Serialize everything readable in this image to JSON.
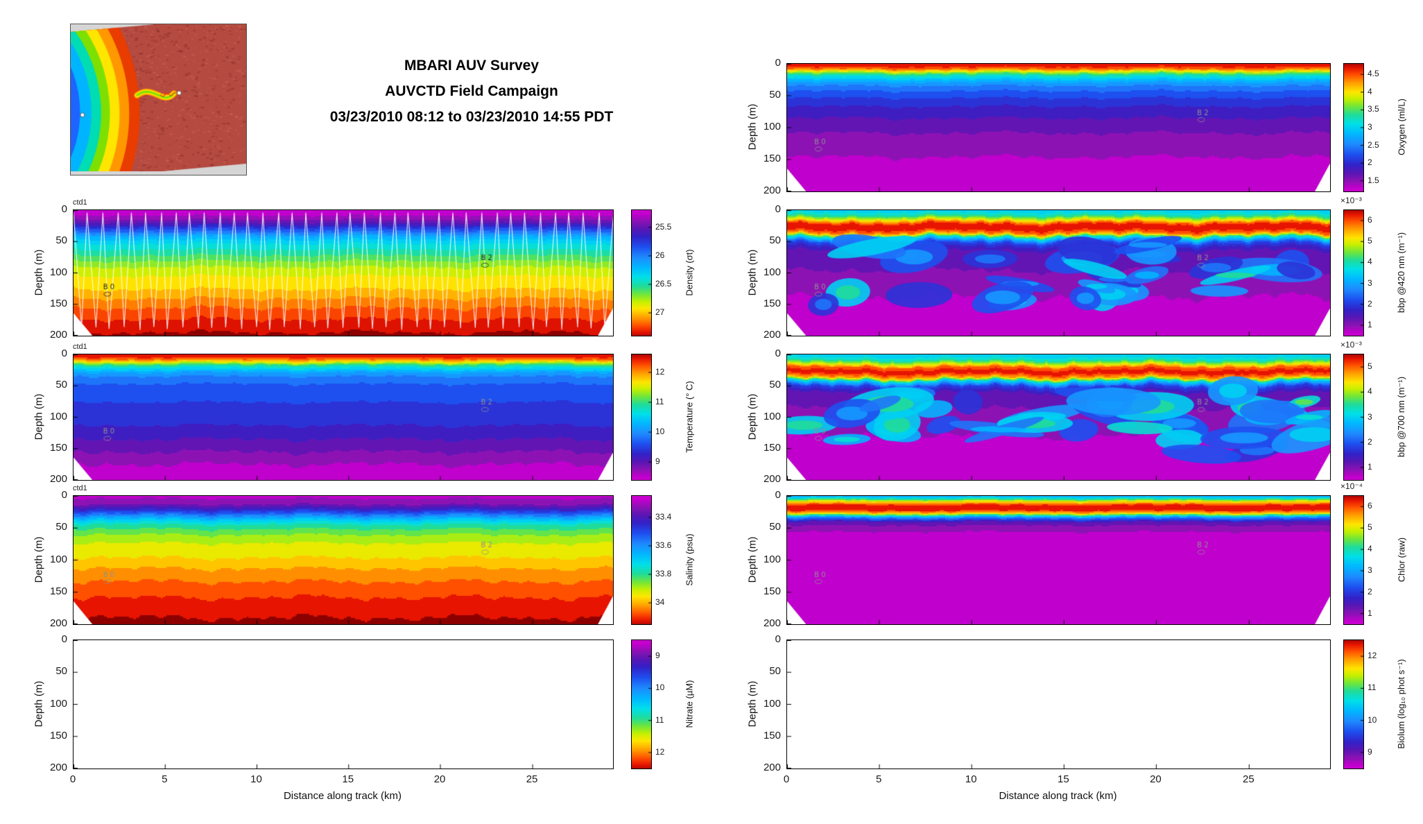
{
  "meta": {
    "title_line1": "MBARI AUV Survey",
    "title_line2": "AUVCTD Field Campaign",
    "title_line3": "03/23/2010 08:12 to 03/23/2010 14:55 PDT"
  },
  "axes": {
    "depth_label": "Depth (m)",
    "depth_ticks": [
      {
        "v": "0",
        "f": 0.0
      },
      {
        "v": "50",
        "f": 0.25
      },
      {
        "v": "100",
        "f": 0.5
      },
      {
        "v": "150",
        "f": 0.75
      },
      {
        "v": "200",
        "f": 1.0
      }
    ],
    "x_label": "Distance along track (km)",
    "x_ticks": [
      {
        "v": "0",
        "f": 0.0
      },
      {
        "v": "5",
        "f": 0.17
      },
      {
        "v": "10",
        "f": 0.34
      },
      {
        "v": "15",
        "f": 0.51
      },
      {
        "v": "20",
        "f": 0.68
      },
      {
        "v": "25",
        "f": 0.851
      }
    ],
    "x_range_km": [
      0,
      29.4
    ],
    "depth_range_m": [
      0,
      200
    ]
  },
  "colormap": [
    [
      0.0,
      "#d400d4"
    ],
    [
      0.05,
      "#c000cd"
    ],
    [
      0.1,
      "#8d12b4"
    ],
    [
      0.16,
      "#5a16b4"
    ],
    [
      0.22,
      "#3222c8"
    ],
    [
      0.3,
      "#1e50f0"
    ],
    [
      0.38,
      "#1e8cff"
    ],
    [
      0.46,
      "#00baff"
    ],
    [
      0.53,
      "#00e0e8"
    ],
    [
      0.6,
      "#20dc9a"
    ],
    [
      0.66,
      "#6ee63c"
    ],
    [
      0.72,
      "#c8f000"
    ],
    [
      0.77,
      "#ffe600"
    ],
    [
      0.84,
      "#ff9c00"
    ],
    [
      0.9,
      "#ff5000"
    ],
    [
      0.95,
      "#e61400"
    ],
    [
      1.0,
      "#8c0000"
    ]
  ],
  "chart_data": [
    {
      "id": "oxygen",
      "type": "heatmap",
      "parameter": "Oxygen",
      "units": "ml/L",
      "column": "right",
      "row": 0,
      "tag": "",
      "empty": false,
      "show_x_ticks": false,
      "colorbar": {
        "label": "Oxygen (ml/L)",
        "multiplier": "",
        "invert": true,
        "ticks": [
          {
            "v": "4.5",
            "f": 0.083
          },
          {
            "v": "4",
            "f": 0.222
          },
          {
            "v": "3.5",
            "f": 0.361
          },
          {
            "v": "3",
            "f": 0.5
          },
          {
            "v": "2.5",
            "f": 0.639
          },
          {
            "v": "2",
            "f": 0.778
          },
          {
            "v": "1.5",
            "f": 0.917
          }
        ]
      },
      "field": {
        "profile": [
          [
            0,
            0.97
          ],
          [
            0.03,
            0.9
          ],
          [
            0.05,
            0.78
          ],
          [
            0.07,
            0.64
          ],
          [
            0.1,
            0.52
          ],
          [
            0.13,
            0.44
          ],
          [
            0.17,
            0.37
          ],
          [
            0.22,
            0.31
          ],
          [
            0.28,
            0.26
          ],
          [
            0.35,
            0.21
          ],
          [
            0.45,
            0.16
          ],
          [
            0.55,
            0.12
          ],
          [
            0.7,
            0.08
          ],
          [
            0.85,
            0.05
          ],
          [
            1,
            0.03
          ]
        ],
        "wave_amp": 0.02,
        "quant": 20,
        "seed": 2,
        "track": false,
        "blobs": null
      },
      "annotations": [
        {
          "x": 0.755,
          "y": 0.4,
          "t": "B 2",
          "c": "#909090"
        },
        {
          "x": 0.05,
          "y": 0.63,
          "t": "B 0",
          "c": "#909090"
        }
      ]
    },
    {
      "id": "bbp420",
      "type": "heatmap",
      "parameter": "bbp @420 nm",
      "units": "m⁻¹",
      "column": "right",
      "row": 1,
      "tag": "",
      "empty": false,
      "show_x_ticks": false,
      "colorbar": {
        "label": "bbp @420 nm (m⁻¹)",
        "multiplier": "×10⁻³",
        "invert": true,
        "ticks": [
          {
            "v": "6",
            "f": 0.083
          },
          {
            "v": "5",
            "f": 0.25
          },
          {
            "v": "4",
            "f": 0.417
          },
          {
            "v": "3",
            "f": 0.583
          },
          {
            "v": "2",
            "f": 0.75
          },
          {
            "v": "1",
            "f": 0.917
          }
        ]
      },
      "field": {
        "profile": [
          [
            0,
            0.5
          ],
          [
            0.04,
            0.6
          ],
          [
            0.07,
            0.75
          ],
          [
            0.1,
            0.92
          ],
          [
            0.14,
            0.97
          ],
          [
            0.18,
            0.85
          ],
          [
            0.21,
            0.55
          ],
          [
            0.25,
            0.3
          ],
          [
            0.3,
            0.18
          ],
          [
            0.4,
            0.14
          ],
          [
            0.55,
            0.11
          ],
          [
            0.7,
            0.07
          ],
          [
            0.85,
            0.04
          ],
          [
            1,
            0.03
          ]
        ],
        "wave_amp": 0.035,
        "quant": 20,
        "seed": 11,
        "track": false,
        "blobs": {
          "count": 30,
          "dmin": 0.25,
          "dmax": 0.78,
          "vmin": 0.22,
          "vmax": 0.5,
          "seed": 17
        }
      },
      "annotations": [
        {
          "x": 0.755,
          "y": 0.4,
          "t": "B 2",
          "c": "#909090"
        },
        {
          "x": 0.05,
          "y": 0.63,
          "t": "B 0",
          "c": "#909090"
        }
      ]
    },
    {
      "id": "bbp700",
      "type": "heatmap",
      "parameter": "bbp @700 nm",
      "units": "m⁻¹",
      "column": "right",
      "row": 2,
      "tag": "",
      "empty": false,
      "show_x_ticks": false,
      "colorbar": {
        "label": "bbp @700 nm (m⁻¹)",
        "multiplier": "×10⁻³",
        "invert": true,
        "ticks": [
          {
            "v": "5",
            "f": 0.1
          },
          {
            "v": "4",
            "f": 0.3
          },
          {
            "v": "3",
            "f": 0.5
          },
          {
            "v": "2",
            "f": 0.7
          },
          {
            "v": "1",
            "f": 0.9
          }
        ]
      },
      "field": {
        "profile": [
          [
            0,
            0.48
          ],
          [
            0.04,
            0.58
          ],
          [
            0.07,
            0.72
          ],
          [
            0.1,
            0.9
          ],
          [
            0.14,
            0.96
          ],
          [
            0.18,
            0.82
          ],
          [
            0.21,
            0.5
          ],
          [
            0.25,
            0.28
          ],
          [
            0.3,
            0.17
          ],
          [
            0.4,
            0.13
          ],
          [
            0.55,
            0.1
          ],
          [
            0.7,
            0.06
          ],
          [
            0.85,
            0.04
          ],
          [
            1,
            0.03
          ]
        ],
        "wave_amp": 0.035,
        "quant": 20,
        "seed": 19,
        "track": false,
        "blobs": {
          "count": 38,
          "dmin": 0.24,
          "dmax": 0.8,
          "vmin": 0.25,
          "vmax": 0.55,
          "seed": 29
        }
      },
      "annotations": [
        {
          "x": 0.755,
          "y": 0.4,
          "t": "B 2",
          "c": "#909090"
        },
        {
          "x": 0.05,
          "y": 0.63,
          "t": "B 0",
          "c": "#909090"
        }
      ]
    },
    {
      "id": "chlor",
      "type": "heatmap",
      "parameter": "Chlor (raw)",
      "units": "raw",
      "column": "right",
      "row": 3,
      "tag": "",
      "empty": false,
      "show_x_ticks": false,
      "colorbar": {
        "label": "Chlor (raw)",
        "multiplier": "×10⁻⁴",
        "invert": true,
        "ticks": [
          {
            "v": "6",
            "f": 0.083
          },
          {
            "v": "5",
            "f": 0.25
          },
          {
            "v": "4",
            "f": 0.417
          },
          {
            "v": "3",
            "f": 0.583
          },
          {
            "v": "2",
            "f": 0.75
          },
          {
            "v": "1",
            "f": 0.917
          }
        ]
      },
      "field": {
        "profile": [
          [
            0,
            0.45
          ],
          [
            0.02,
            0.6
          ],
          [
            0.04,
            0.78
          ],
          [
            0.07,
            0.95
          ],
          [
            0.1,
            0.97
          ],
          [
            0.13,
            0.8
          ],
          [
            0.16,
            0.4
          ],
          [
            0.2,
            0.15
          ],
          [
            0.28,
            0.07
          ],
          [
            0.45,
            0.05
          ],
          [
            1,
            0.04
          ]
        ],
        "wave_amp": 0.012,
        "quant": 20,
        "seed": 23,
        "track": false,
        "blobs": null
      },
      "annotations": [
        {
          "x": 0.755,
          "y": 0.4,
          "t": "B 2",
          "c": "#909090"
        },
        {
          "x": 0.05,
          "y": 0.63,
          "t": "B 0",
          "c": "#909090"
        }
      ]
    },
    {
      "id": "biolum",
      "type": "heatmap",
      "parameter": "Biolum",
      "units": "log10 phot s-1",
      "column": "right",
      "row": 4,
      "tag": "",
      "empty": true,
      "show_x_ticks": true,
      "colorbar": {
        "label": "Biolum (log₁₀ phot s⁻¹)",
        "multiplier": "",
        "invert": true,
        "ticks": [
          {
            "v": "12",
            "f": 0.125
          },
          {
            "v": "11",
            "f": 0.375
          },
          {
            "v": "10",
            "f": 0.625
          },
          {
            "v": "9",
            "f": 0.875
          }
        ]
      },
      "field": null,
      "annotations": []
    },
    {
      "id": "density",
      "type": "heatmap",
      "parameter": "Density",
      "units": "sigma-t",
      "column": "left",
      "row": 0,
      "tag": "ctd1",
      "empty": false,
      "show_x_ticks": false,
      "colorbar": {
        "label": "Density (σt)",
        "multiplier": "",
        "invert": false,
        "ticks": [
          {
            "v": "25.5",
            "f": 0.136
          },
          {
            "v": "26",
            "f": 0.364
          },
          {
            "v": "26.5",
            "f": 0.591
          },
          {
            "v": "27",
            "f": 0.818
          }
        ]
      },
      "field": {
        "profile": [
          [
            0,
            0.03
          ],
          [
            0.05,
            0.08
          ],
          [
            0.09,
            0.15
          ],
          [
            0.13,
            0.25
          ],
          [
            0.17,
            0.35
          ],
          [
            0.21,
            0.45
          ],
          [
            0.26,
            0.52
          ],
          [
            0.32,
            0.58
          ],
          [
            0.38,
            0.64
          ],
          [
            0.44,
            0.7
          ],
          [
            0.52,
            0.75
          ],
          [
            0.6,
            0.78
          ],
          [
            0.68,
            0.83
          ],
          [
            0.78,
            0.89
          ],
          [
            0.88,
            0.94
          ],
          [
            1,
            0.99
          ]
        ],
        "wave_amp": 0.018,
        "quant": 22,
        "seed": 3,
        "track": true,
        "blobs": null
      },
      "annotations": [
        {
          "x": 0.755,
          "y": 0.4,
          "t": "B 2",
          "c": "#222222"
        },
        {
          "x": 0.055,
          "y": 0.63,
          "t": "B 0",
          "c": "#222222"
        }
      ]
    },
    {
      "id": "temperature",
      "type": "heatmap",
      "parameter": "Temperature",
      "units": "°C",
      "column": "left",
      "row": 1,
      "tag": "ctd1",
      "empty": false,
      "show_x_ticks": false,
      "colorbar": {
        "label": "Temperature (° C)",
        "multiplier": "",
        "invert": true,
        "ticks": [
          {
            "v": "12",
            "f": 0.143
          },
          {
            "v": "11",
            "f": 0.381
          },
          {
            "v": "10",
            "f": 0.619
          },
          {
            "v": "9",
            "f": 0.857
          }
        ]
      },
      "field": {
        "profile": [
          [
            0,
            0.97
          ],
          [
            0.02,
            0.92
          ],
          [
            0.04,
            0.84
          ],
          [
            0.06,
            0.72
          ],
          [
            0.08,
            0.6
          ],
          [
            0.11,
            0.5
          ],
          [
            0.14,
            0.42
          ],
          [
            0.18,
            0.36
          ],
          [
            0.25,
            0.31
          ],
          [
            0.35,
            0.28
          ],
          [
            0.5,
            0.25
          ],
          [
            0.62,
            0.2
          ],
          [
            0.72,
            0.15
          ],
          [
            0.82,
            0.1
          ],
          [
            0.92,
            0.05
          ],
          [
            1,
            0.03
          ]
        ],
        "wave_amp": 0.02,
        "quant": 20,
        "seed": 5,
        "track": false,
        "blobs": null
      },
      "annotations": [
        {
          "x": 0.755,
          "y": 0.4,
          "t": "B 2",
          "c": "#909090"
        },
        {
          "x": 0.055,
          "y": 0.63,
          "t": "B 0",
          "c": "#909090"
        }
      ]
    },
    {
      "id": "salinity",
      "type": "heatmap",
      "parameter": "Salinity",
      "units": "psu",
      "column": "left",
      "row": 2,
      "tag": "ctd1",
      "empty": false,
      "show_x_ticks": false,
      "colorbar": {
        "label": "Salinity (psu)",
        "multiplier": "",
        "invert": false,
        "ticks": [
          {
            "v": "33.4",
            "f": 0.167
          },
          {
            "v": "33.6",
            "f": 0.389
          },
          {
            "v": "33.8",
            "f": 0.611
          },
          {
            "v": "34",
            "f": 0.833
          }
        ]
      },
      "field": {
        "profile": [
          [
            0,
            0.06
          ],
          [
            0.06,
            0.12
          ],
          [
            0.1,
            0.22
          ],
          [
            0.14,
            0.35
          ],
          [
            0.18,
            0.48
          ],
          [
            0.22,
            0.58
          ],
          [
            0.28,
            0.66
          ],
          [
            0.35,
            0.72
          ],
          [
            0.45,
            0.76
          ],
          [
            0.55,
            0.82
          ],
          [
            0.65,
            0.87
          ],
          [
            0.75,
            0.91
          ],
          [
            0.85,
            0.95
          ],
          [
            1,
            0.99
          ]
        ],
        "wave_amp": 0.022,
        "quant": 20,
        "seed": 8,
        "track": false,
        "blobs": null
      },
      "annotations": [
        {
          "x": 0.755,
          "y": 0.4,
          "t": "B 2",
          "c": "#909090"
        },
        {
          "x": 0.055,
          "y": 0.63,
          "t": "B 0",
          "c": "#909090"
        }
      ]
    },
    {
      "id": "nitrate",
      "type": "heatmap",
      "parameter": "Nitrate",
      "units": "µM",
      "column": "left",
      "row": 3,
      "tag": "",
      "empty": true,
      "show_x_ticks": true,
      "colorbar": {
        "label": "Nitrate (µM)",
        "multiplier": "",
        "invert": false,
        "ticks": [
          {
            "v": "9",
            "f": 0.125
          },
          {
            "v": "10",
            "f": 0.375
          },
          {
            "v": "11",
            "f": 0.625
          },
          {
            "v": "12",
            "f": 0.875
          }
        ]
      },
      "field": null,
      "annotations": []
    }
  ]
}
